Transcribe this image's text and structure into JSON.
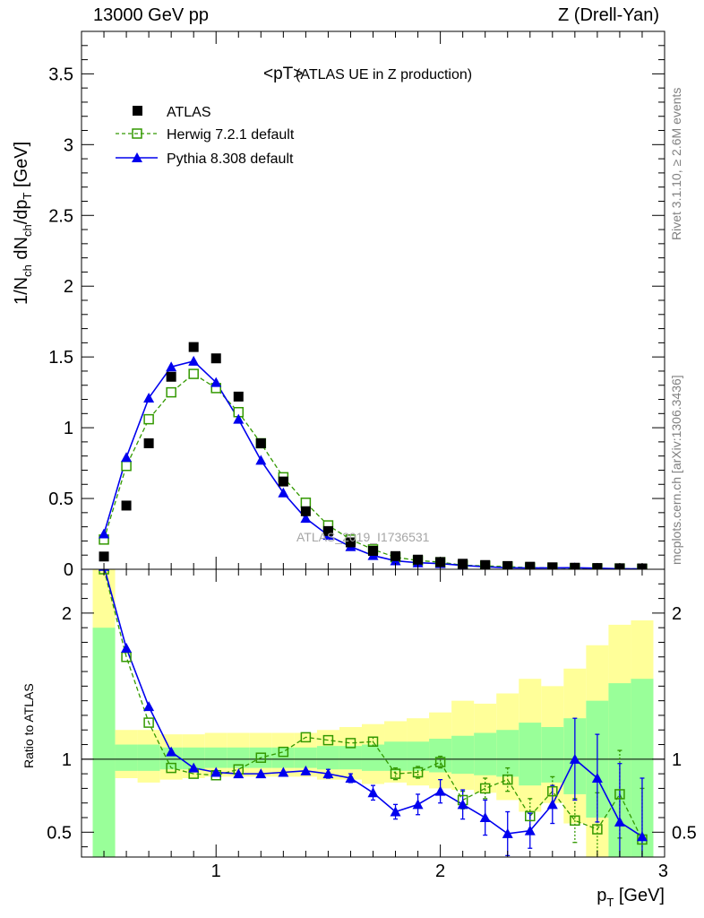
{
  "header": {
    "left": "13000 GeV pp",
    "right": "Z (Drell-Yan)"
  },
  "side_labels": {
    "rivet": "Rivet 3.1.10, ≥ 2.6M events",
    "mcplots": "mcplots.cern.ch [arXiv:1306.3436]"
  },
  "colors": {
    "atlas": "#000000",
    "herwig": "#339900",
    "pythia": "#0000ee",
    "band_1sigma": "#99ff99",
    "band_2sigma": "#ffff99",
    "watermark": "#a6a6a6"
  },
  "chart_data": [
    {
      "type": "scatter",
      "panel": "main",
      "title": "<pT>",
      "title_suffix": "(ATLAS UE in Z production)",
      "ylabel": "1/N_ch dN_ch/dp_T [GeV]",
      "watermark": "ATLAS_2019_I1736531",
      "xlim": [
        0.4,
        3.0
      ],
      "ylim": [
        0,
        3.8
      ],
      "x_ticks": [
        1,
        2,
        3
      ],
      "y_ticks": [
        0,
        0.5,
        1,
        1.5,
        2,
        2.5,
        3,
        3.5
      ],
      "y_tick_labels": [
        "0",
        "0.5",
        "1",
        "1.5",
        "2",
        "2.5",
        "3",
        "3.5"
      ],
      "legend": {
        "placement": "top-left",
        "entries": [
          "ATLAS",
          "Herwig 7.2.1 default",
          "Pythia 8.308 default"
        ]
      },
      "x": [
        0.5,
        0.6,
        0.7,
        0.8,
        0.9,
        1.0,
        1.1,
        1.2,
        1.3,
        1.4,
        1.5,
        1.6,
        1.7,
        1.8,
        1.9,
        2.0,
        2.1,
        2.2,
        2.3,
        2.4,
        2.5,
        2.6,
        2.7,
        2.8,
        2.9
      ],
      "series": [
        {
          "name": "ATLAS",
          "marker": "filled-square",
          "values": [
            0.09,
            0.45,
            0.89,
            1.36,
            1.57,
            1.49,
            1.22,
            0.89,
            0.62,
            0.41,
            0.27,
            0.19,
            0.13,
            0.093,
            0.068,
            0.051,
            0.039,
            0.03,
            0.023,
            0.018,
            0.014,
            0.011,
            0.009,
            0.007,
            0.006
          ]
        },
        {
          "name": "Herwig 7.2.1 default",
          "marker": "open-square",
          "line": "dashed",
          "values": [
            0.21,
            0.73,
            1.06,
            1.25,
            1.38,
            1.28,
            1.11,
            0.89,
            0.65,
            0.47,
            0.31,
            0.21,
            0.14,
            0.085,
            0.062,
            0.05,
            0.029,
            0.024,
            0.019,
            0.011,
            0.011,
            0.0065,
            0.0047,
            0.0053,
            0.0028
          ]
        },
        {
          "name": "Pythia 8.308 default",
          "marker": "filled-triangle",
          "line": "solid",
          "values": [
            0.25,
            0.79,
            1.21,
            1.43,
            1.47,
            1.32,
            1.06,
            0.77,
            0.54,
            0.36,
            0.24,
            0.16,
            0.097,
            0.06,
            0.046,
            0.04,
            0.027,
            0.018,
            0.011,
            0.0092,
            0.0096,
            0.011,
            0.0078,
            0.004,
            0.0026
          ]
        }
      ]
    },
    {
      "type": "line",
      "panel": "ratio",
      "ylabel": "Ratio to ATLAS",
      "xlabel": "p_T [GeV]",
      "xlim": [
        0.4,
        3.0
      ],
      "ylim": [
        0.33,
        2.3
      ],
      "x_ticks": [
        1,
        2,
        3
      ],
      "x_tick_labels": [
        "1",
        "2",
        "3"
      ],
      "y_ticks": [
        0.5,
        1,
        2
      ],
      "y_tick_labels": [
        "0.5",
        "1",
        "2"
      ],
      "reference_line": 1.0,
      "x": [
        0.5,
        0.6,
        0.7,
        0.8,
        0.9,
        1.0,
        1.1,
        1.2,
        1.3,
        1.4,
        1.5,
        1.6,
        1.7,
        1.8,
        1.9,
        2.0,
        2.1,
        2.2,
        2.3,
        2.4,
        2.5,
        2.6,
        2.7,
        2.8,
        2.9
      ],
      "bands": {
        "bin_edges": [
          0.45,
          0.55,
          0.65,
          0.75,
          0.85,
          0.95,
          1.05,
          1.15,
          1.25,
          1.35,
          1.45,
          1.55,
          1.65,
          1.75,
          1.85,
          1.95,
          2.05,
          2.15,
          2.25,
          2.35,
          2.45,
          2.55,
          2.65,
          2.75,
          2.85,
          2.95
        ],
        "one_sigma_low": [
          0.33,
          0.92,
          0.92,
          0.93,
          0.93,
          0.94,
          0.94,
          0.94,
          0.94,
          0.94,
          0.93,
          0.93,
          0.92,
          0.92,
          0.92,
          0.91,
          0.9,
          0.89,
          0.88,
          0.82,
          0.84,
          0.76,
          0.6,
          0.33,
          0.33
        ],
        "one_sigma_high": [
          1.9,
          1.1,
          1.1,
          1.08,
          1.08,
          1.08,
          1.08,
          1.08,
          1.08,
          1.08,
          1.09,
          1.09,
          1.1,
          1.12,
          1.12,
          1.14,
          1.16,
          1.18,
          1.2,
          1.25,
          1.22,
          1.28,
          1.4,
          1.52,
          1.55
        ],
        "two_sigma_low": [
          0.33,
          0.87,
          0.84,
          0.86,
          0.87,
          0.88,
          0.88,
          0.88,
          0.88,
          0.88,
          0.86,
          0.86,
          0.83,
          0.84,
          0.82,
          0.8,
          0.79,
          0.77,
          0.72,
          0.64,
          0.7,
          0.56,
          0.33,
          0.33,
          0.33
        ],
        "two_sigma_high": [
          2.3,
          1.2,
          1.2,
          1.17,
          1.17,
          1.18,
          1.18,
          1.18,
          1.18,
          1.18,
          1.2,
          1.22,
          1.24,
          1.26,
          1.28,
          1.32,
          1.4,
          1.38,
          1.45,
          1.55,
          1.5,
          1.62,
          1.78,
          1.92,
          1.95
        ]
      },
      "series": [
        {
          "name": "Herwig 7.2.1 default",
          "values": [
            2.3,
            1.7,
            1.25,
            0.94,
            0.9,
            0.89,
            0.93,
            1.01,
            1.05,
            1.15,
            1.13,
            1.11,
            1.12,
            0.9,
            0.91,
            0.98,
            0.72,
            0.8,
            0.86,
            0.61,
            0.78,
            0.58,
            0.52,
            0.76,
            0.45
          ],
          "errors": [
            0.02,
            0.02,
            0.02,
            0.01,
            0.01,
            0.01,
            0.01,
            0.01,
            0.01,
            0.01,
            0.02,
            0.02,
            0.03,
            0.04,
            0.04,
            0.04,
            0.06,
            0.07,
            0.08,
            0.12,
            0.1,
            0.15,
            0.25,
            0.3,
            0.35
          ]
        },
        {
          "name": "Pythia 8.308 default",
          "values": [
            2.32,
            1.76,
            1.36,
            1.05,
            0.94,
            0.91,
            0.9,
            0.9,
            0.91,
            0.92,
            0.9,
            0.87,
            0.77,
            0.64,
            0.69,
            0.78,
            0.69,
            0.6,
            0.49,
            0.51,
            0.69,
            1.0,
            0.87,
            0.57,
            0.47
          ],
          "errors": [
            0.02,
            0.02,
            0.02,
            0.01,
            0.01,
            0.01,
            0.01,
            0.02,
            0.02,
            0.02,
            0.03,
            0.03,
            0.05,
            0.05,
            0.07,
            0.08,
            0.1,
            0.12,
            0.15,
            0.12,
            0.13,
            0.28,
            0.3,
            0.4,
            0.4
          ]
        }
      ]
    }
  ]
}
